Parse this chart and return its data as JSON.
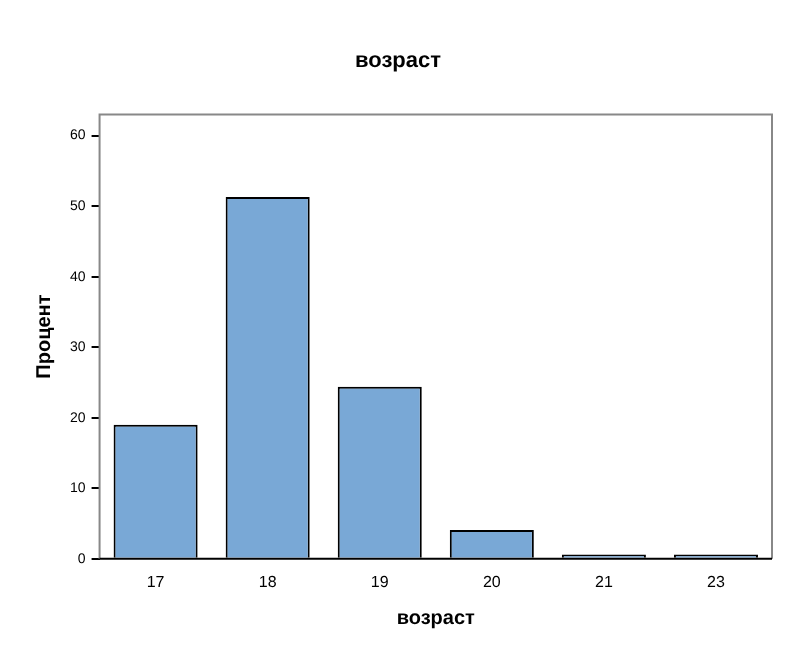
{
  "chart_data": {
    "type": "bar",
    "title": "возраст",
    "xlabel": "возраст",
    "ylabel": "Процент",
    "categories": [
      "17",
      "18",
      "19",
      "20",
      "21",
      "23"
    ],
    "values": [
      19.0,
      51.3,
      24.4,
      4.1,
      0.6,
      0.6
    ],
    "color": "#79a8d6",
    "ylim": [
      0,
      63
    ],
    "yticks": [
      0,
      10,
      20,
      30,
      40,
      50,
      60
    ],
    "grid": false,
    "legend": false
  }
}
